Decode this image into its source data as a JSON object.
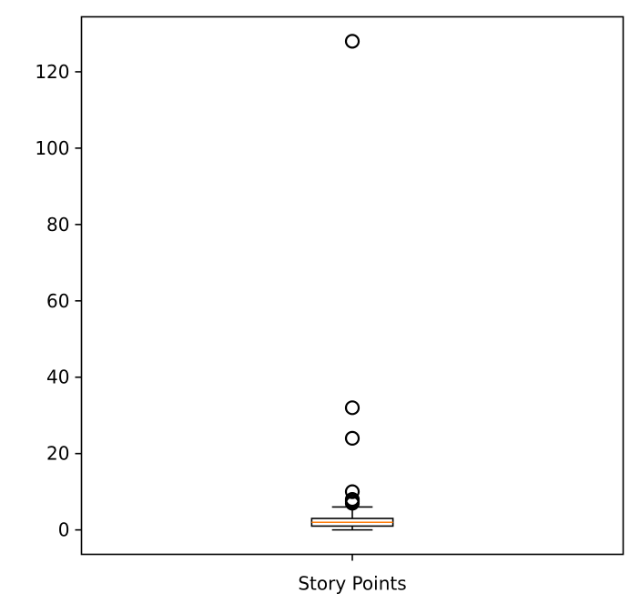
{
  "chart_data": {
    "type": "box",
    "categories": [
      "Story Points"
    ],
    "xlabel": "",
    "ylabel": "",
    "title": "",
    "ylim": [
      -6.4,
      134.4
    ],
    "yticks": [
      0,
      20,
      40,
      60,
      80,
      100,
      120
    ],
    "grid": false,
    "boxes": [
      {
        "name": "Story Points",
        "whisker_low": 0,
        "q1": 1,
        "median": 2,
        "q3": 3,
        "whisker_high": 6,
        "outliers": [
          7,
          7.5,
          8,
          10,
          24,
          32,
          128
        ]
      }
    ],
    "colors": {
      "box": "#000000",
      "median": "#ff7f0e",
      "flier_edge": "#000000"
    }
  }
}
